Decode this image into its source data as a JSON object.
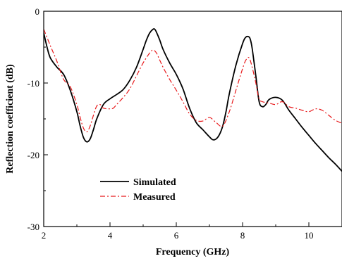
{
  "chart_data": {
    "type": "line",
    "title": "",
    "xlabel": "Frequency (GHz)",
    "ylabel": "Reflection coefficient (dB)",
    "xlim": [
      2,
      11
    ],
    "ylim": [
      -30,
      0
    ],
    "x_ticks": [
      2,
      4,
      6,
      8,
      10
    ],
    "y_ticks": [
      0,
      -10,
      -20,
      -30
    ],
    "x_tick_labels": [
      "2",
      "4",
      "6",
      "8",
      "10"
    ],
    "y_tick_labels": [
      "0",
      "-10",
      "-20",
      "-30"
    ],
    "grid": false,
    "legend_position": "bottom-left",
    "series": [
      {
        "name": "Simulated",
        "color": "#000000",
        "style": "solid",
        "x": [
          2.0,
          2.1,
          2.2,
          2.4,
          2.6,
          2.8,
          3.0,
          3.1,
          3.2,
          3.3,
          3.4,
          3.5,
          3.6,
          3.8,
          4.0,
          4.2,
          4.4,
          4.6,
          4.8,
          5.0,
          5.1,
          5.2,
          5.3,
          5.35,
          5.4,
          5.5,
          5.6,
          5.8,
          6.0,
          6.2,
          6.4,
          6.6,
          6.8,
          7.0,
          7.1,
          7.2,
          7.3,
          7.4,
          7.5,
          7.6,
          7.8,
          8.0,
          8.1,
          8.2,
          8.25,
          8.3,
          8.4,
          8.5,
          8.6,
          8.7,
          8.8,
          9.0,
          9.2,
          9.4,
          9.6,
          9.8,
          10.0,
          10.2,
          10.4,
          10.6,
          10.8,
          11.0
        ],
        "y": [
          -3.0,
          -5.0,
          -6.5,
          -7.8,
          -8.8,
          -11.0,
          -14.0,
          -16.0,
          -17.6,
          -18.2,
          -17.8,
          -16.5,
          -15.0,
          -13.0,
          -12.2,
          -11.6,
          -10.9,
          -9.6,
          -7.8,
          -5.3,
          -4.0,
          -3.0,
          -2.5,
          -2.5,
          -2.9,
          -4.0,
          -5.3,
          -7.2,
          -8.8,
          -10.8,
          -13.5,
          -15.5,
          -16.5,
          -17.5,
          -17.9,
          -17.8,
          -17.2,
          -16.0,
          -14.0,
          -11.5,
          -7.5,
          -4.5,
          -3.6,
          -3.6,
          -4.2,
          -5.5,
          -9.0,
          -12.6,
          -13.3,
          -13.0,
          -12.3,
          -12.0,
          -12.4,
          -13.8,
          -15.0,
          -16.2,
          -17.3,
          -18.4,
          -19.4,
          -20.4,
          -21.3,
          -22.3
        ]
      },
      {
        "name": "Measured",
        "color": "#e8191b",
        "style": "dashdot",
        "x": [
          2.0,
          2.2,
          2.4,
          2.6,
          2.8,
          3.0,
          3.1,
          3.2,
          3.3,
          3.4,
          3.5,
          3.6,
          3.7,
          3.8,
          4.0,
          4.1,
          4.2,
          4.4,
          4.6,
          4.8,
          5.0,
          5.2,
          5.3,
          5.4,
          5.5,
          5.6,
          5.8,
          6.0,
          6.2,
          6.4,
          6.6,
          6.8,
          7.0,
          7.2,
          7.4,
          7.6,
          7.8,
          8.0,
          8.1,
          8.2,
          8.3,
          8.4,
          8.5,
          8.6,
          8.8,
          9.0,
          9.2,
          9.4,
          9.6,
          9.8,
          10.0,
          10.2,
          10.4,
          10.6,
          10.8,
          11.0
        ],
        "y": [
          -2.5,
          -4.8,
          -7.0,
          -9.5,
          -10.5,
          -13.0,
          -14.8,
          -16.3,
          -16.8,
          -16.0,
          -14.5,
          -13.2,
          -13.0,
          -13.5,
          -13.6,
          -13.5,
          -13.0,
          -12.0,
          -10.8,
          -9.0,
          -7.2,
          -5.8,
          -5.4,
          -5.8,
          -6.8,
          -7.8,
          -9.5,
          -11.0,
          -12.6,
          -14.3,
          -15.2,
          -15.3,
          -14.8,
          -15.5,
          -16.0,
          -14.0,
          -11.0,
          -8.0,
          -6.8,
          -6.5,
          -8.0,
          -10.0,
          -12.2,
          -12.6,
          -12.8,
          -13.0,
          -12.6,
          -13.3,
          -13.5,
          -13.8,
          -14.0,
          -13.6,
          -13.8,
          -14.5,
          -15.2,
          -15.6
        ]
      }
    ]
  }
}
